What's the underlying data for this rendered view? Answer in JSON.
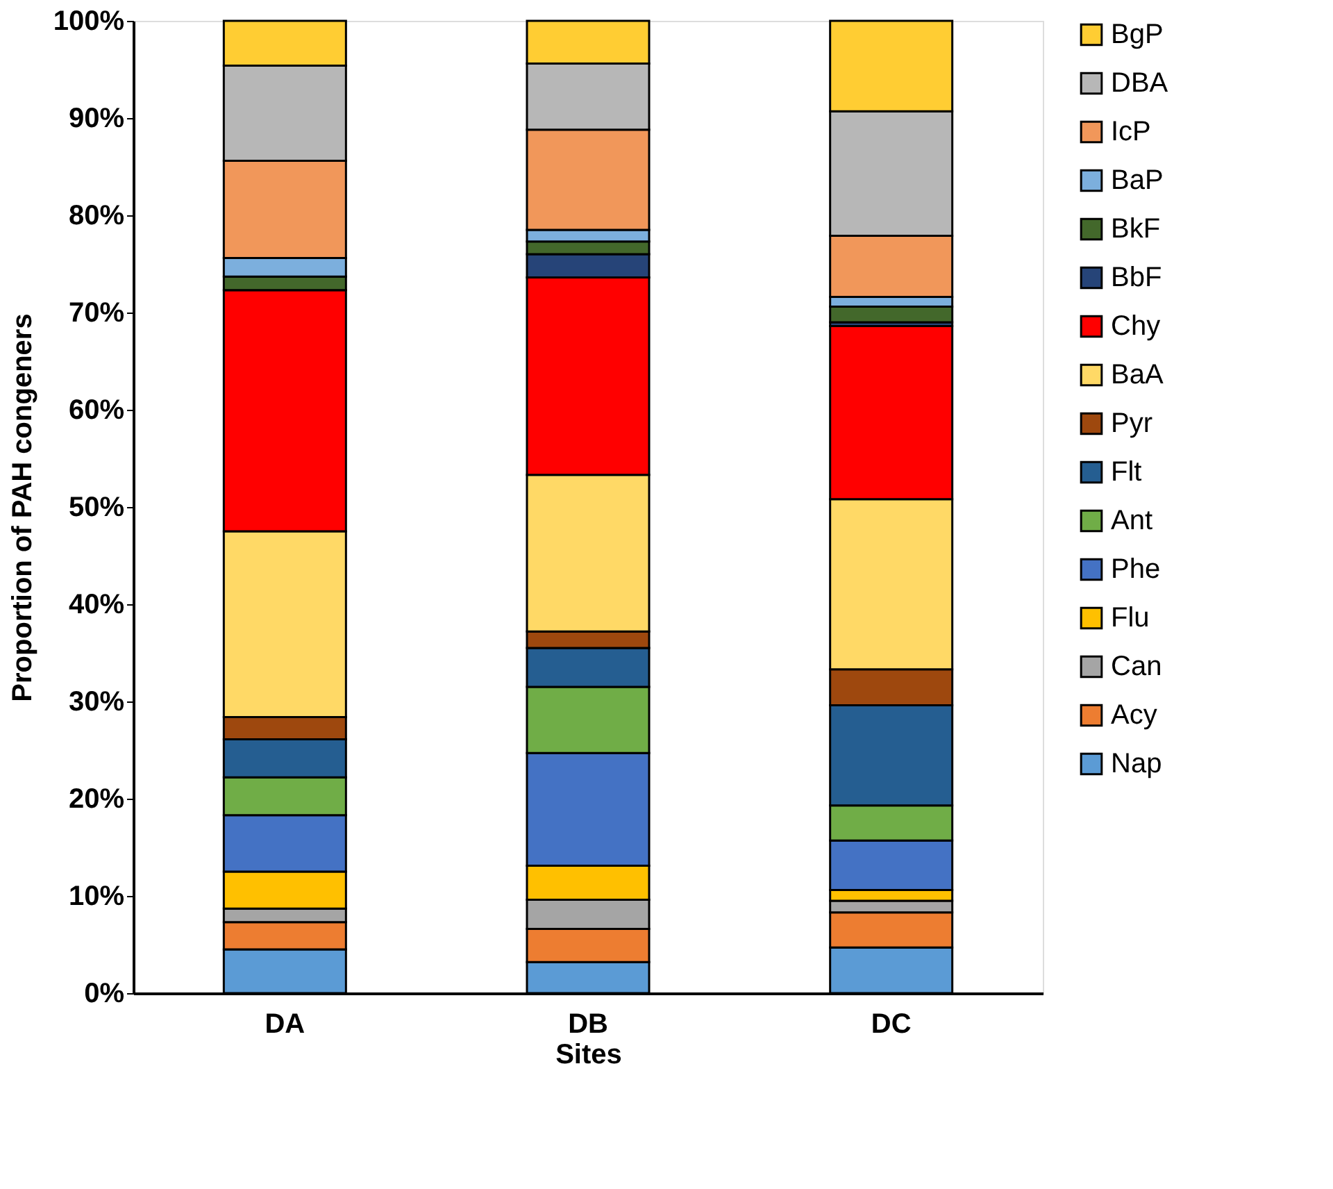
{
  "chart_data": {
    "type": "bar",
    "stacked": true,
    "xlabel": "Sites",
    "ylabel": "Proportion of PAH congeners",
    "categories": [
      "DA",
      "DB",
      "DC"
    ],
    "ylim": [
      0,
      100
    ],
    "yticks": [
      {
        "value": 0,
        "label": "0%"
      },
      {
        "value": 10,
        "label": "10%"
      },
      {
        "value": 20,
        "label": "20%"
      },
      {
        "value": 30,
        "label": "30%"
      },
      {
        "value": 40,
        "label": "40%"
      },
      {
        "value": 50,
        "label": "50%"
      },
      {
        "value": 60,
        "label": "60%"
      },
      {
        "value": 70,
        "label": "70%"
      },
      {
        "value": 80,
        "label": "80%"
      },
      {
        "value": 90,
        "label": "90%"
      },
      {
        "value": 100,
        "label": "100%"
      }
    ],
    "grid": false,
    "legend": "right",
    "series": [
      {
        "name": "Nap",
        "color": "#5b9bd5",
        "values": [
          4.5,
          3.2,
          4.7
        ]
      },
      {
        "name": "Acy",
        "color": "#ed7d31",
        "values": [
          2.8,
          3.4,
          3.6
        ]
      },
      {
        "name": "Can",
        "color": "#a5a5a5",
        "values": [
          1.4,
          3.0,
          1.2
        ]
      },
      {
        "name": "Flu",
        "color": "#ffc000",
        "values": [
          3.8,
          3.5,
          1.1
        ]
      },
      {
        "name": "Phe",
        "color": "#4472c4",
        "values": [
          5.8,
          11.6,
          5.1
        ]
      },
      {
        "name": "Ant",
        "color": "#70ad47",
        "values": [
          3.9,
          6.8,
          3.6
        ]
      },
      {
        "name": "Flt",
        "color": "#255e91",
        "values": [
          3.9,
          4.0,
          10.3
        ]
      },
      {
        "name": "Pyr",
        "color": "#9e480e",
        "values": [
          2.3,
          1.7,
          3.7
        ]
      },
      {
        "name": "BaA",
        "color": "#ffd966",
        "values": [
          19.1,
          16.1,
          17.5
        ]
      },
      {
        "name": "Chy",
        "color": "#ff0000",
        "values": [
          24.8,
          20.3,
          17.8
        ]
      },
      {
        "name": "BbF",
        "color": "#264478",
        "values": [
          0,
          2.4,
          0.4
        ]
      },
      {
        "name": "BkF",
        "color": "#43682b",
        "values": [
          1.4,
          1.3,
          1.6
        ]
      },
      {
        "name": "BaP",
        "color": "#7cafdd",
        "values": [
          1.9,
          1.2,
          1.0
        ]
      },
      {
        "name": "IcP",
        "color": "#f1975a",
        "values": [
          10.0,
          10.3,
          6.3
        ]
      },
      {
        "name": "DBA",
        "color": "#b7b7b7",
        "values": [
          9.8,
          6.8,
          12.8
        ]
      },
      {
        "name": "BgP",
        "color": "#ffcd33",
        "values": [
          4.6,
          4.4,
          9.3
        ]
      }
    ]
  }
}
